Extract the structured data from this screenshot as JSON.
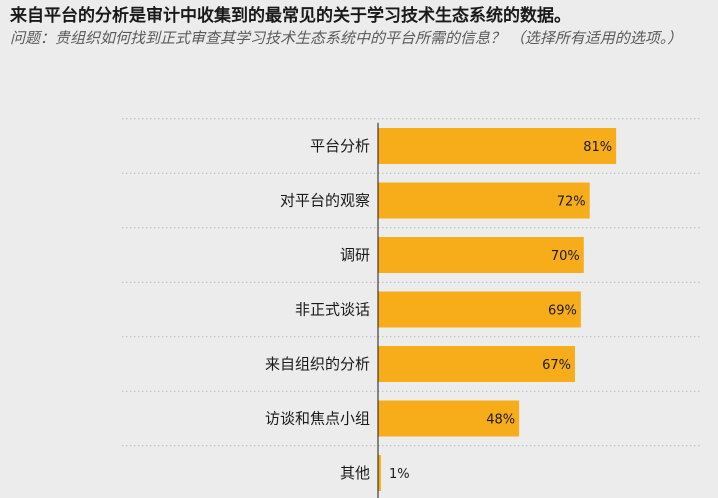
{
  "header": {
    "title": "来自平台的分析是审计中收集到的最常见的关于学习技术生态系统的数据。",
    "question": "问题：贵组织如何找到正式审查其学习技术生态系统中的平台所需的信息？ （选择所有适用的选项。）"
  },
  "colors": {
    "bar": "#f7ac1a",
    "background": "#ececec",
    "gridline": "#b8b8b8",
    "axis": "#1a1a1a"
  },
  "chart_data": {
    "type": "bar",
    "orientation": "horizontal",
    "categories": [
      "平台分析",
      "对平台的观察",
      "调研",
      "非正式谈话",
      "来自组织的分析",
      "访谈和焦点小组",
      "其他"
    ],
    "values": [
      81,
      72,
      70,
      69,
      67,
      48,
      1
    ],
    "value_labels": [
      "81%",
      "72%",
      "70%",
      "69%",
      "67%",
      "48%",
      "1%"
    ],
    "unit": "%",
    "xlim": [
      0,
      100
    ],
    "grid": "dotted horizontal separators",
    "legend": "none"
  }
}
